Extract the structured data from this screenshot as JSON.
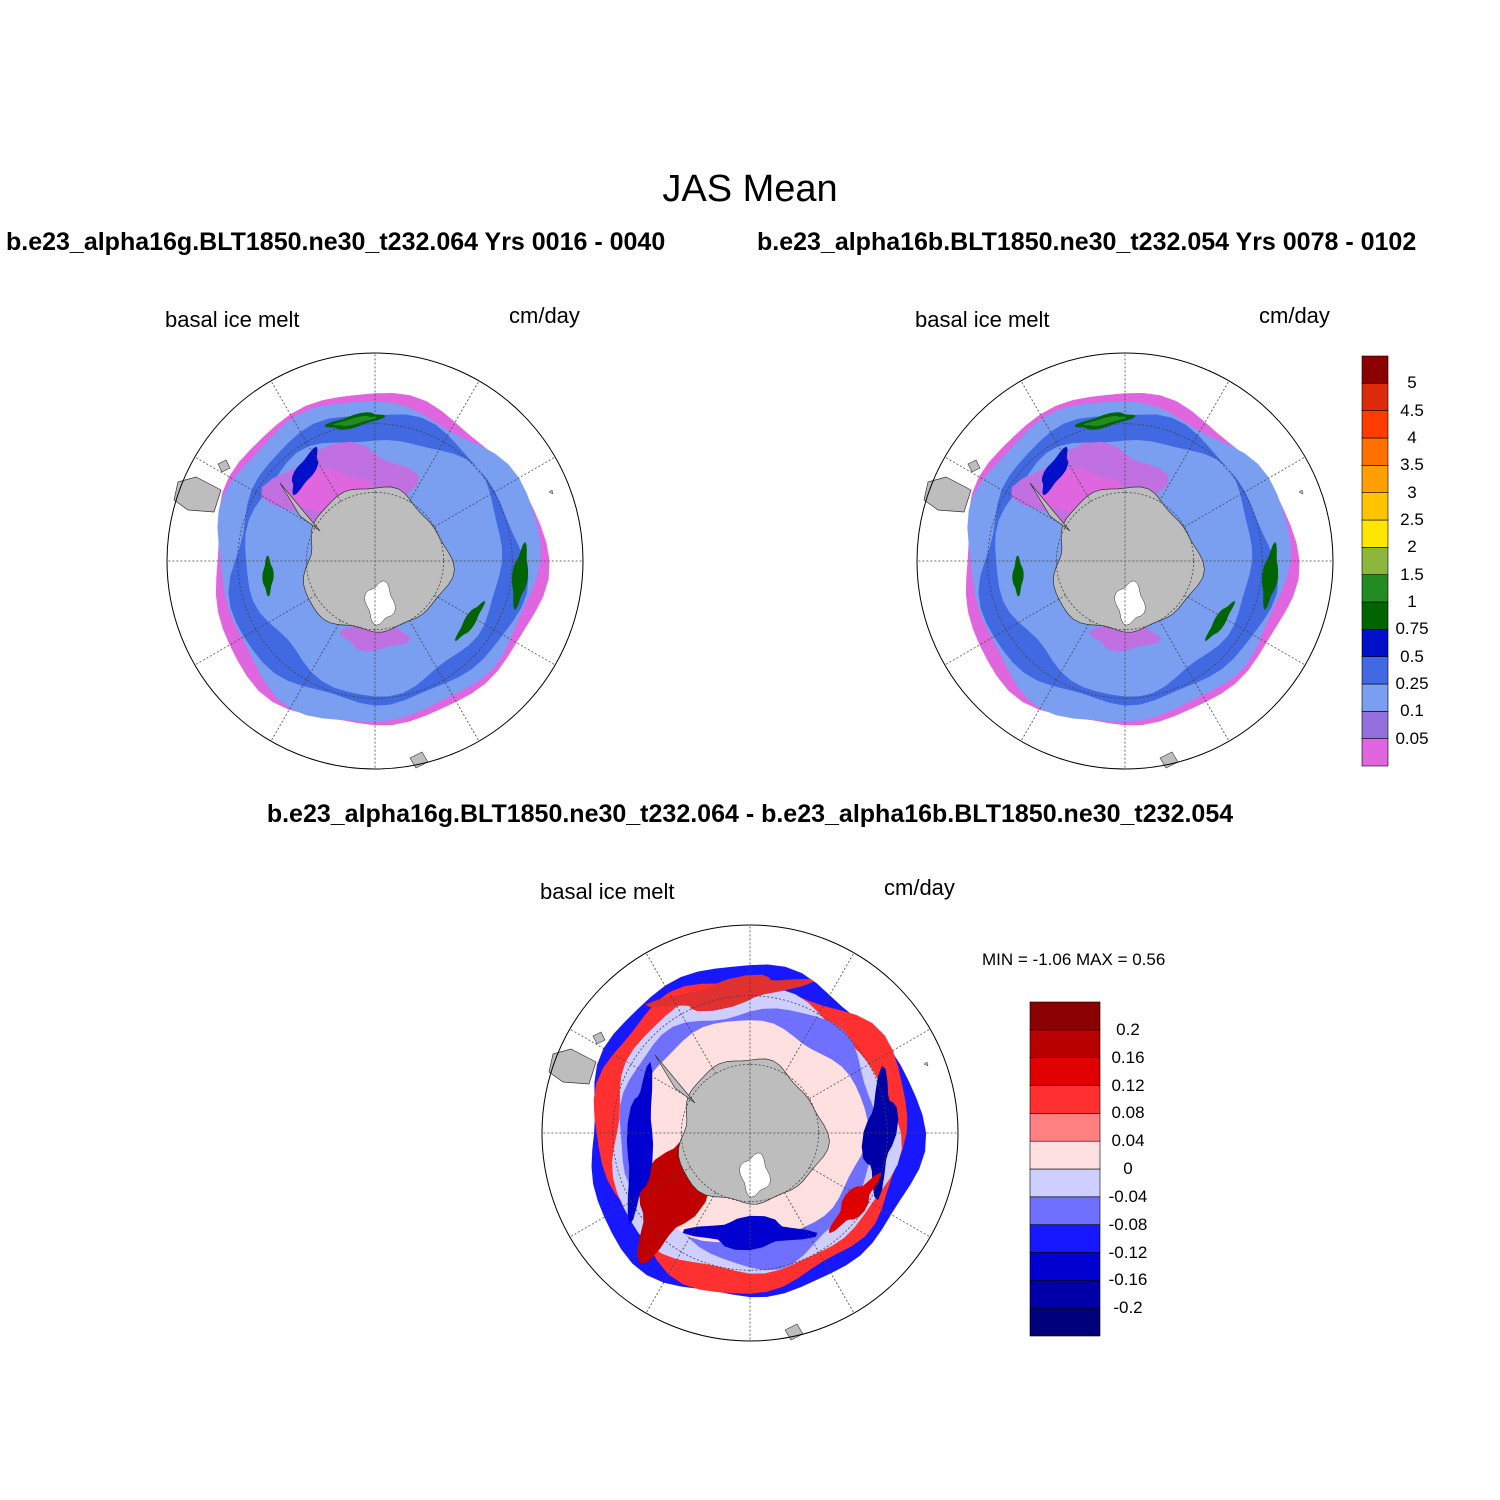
{
  "title": "JAS Mean",
  "case1": {
    "title": "b.e23_alpha16g.BLT1850.ne30_t232.064  Yrs 0016 - 0040"
  },
  "case2": {
    "title": "b.e23_alpha16b.BLT1850.ne30_t232.054  Yrs 0078 - 0102"
  },
  "diff": {
    "title": "b.e23_alpha16g.BLT1850.ne30_t232.064 - b.e23_alpha16b.BLT1850.ne30_t232.054"
  },
  "panels": {
    "left": {
      "variable": "basal ice melt",
      "units": "cm/day"
    },
    "right": {
      "variable": "basal ice melt",
      "units": "cm/day"
    },
    "diff": {
      "variable": "basal ice melt",
      "units": "cm/day",
      "minmax": "MIN =  -1.06 MAX =   0.56"
    }
  },
  "colorbar_main": {
    "levels": [
      "0.05",
      "0.1",
      "0.25",
      "0.5",
      "0.75",
      "1",
      "1.5",
      "2",
      "2.5",
      "3",
      "3.5",
      "4",
      "4.5",
      "5"
    ],
    "colors": [
      "#e066e0",
      "#9370db",
      "#7a9ef0",
      "#4169e1",
      "#0010c8",
      "#006400",
      "#228b22",
      "#8db63a",
      "#ffe600",
      "#ffc400",
      "#ffa000",
      "#ff7000",
      "#ff3c00",
      "#dc2a0a",
      "#8b0000"
    ]
  },
  "colorbar_diff": {
    "levels": [
      "-0.2",
      "-0.16",
      "-0.12",
      "-0.08",
      "-0.04",
      "0",
      "0.04",
      "0.08",
      "0.12",
      "0.16",
      "0.2"
    ],
    "colors": [
      "#00007a",
      "#0000a8",
      "#0000d0",
      "#1818ff",
      "#7070ff",
      "#cfcfff",
      "#ffe0e0",
      "#ff8080",
      "#ff3030",
      "#e00000",
      "#b80000",
      "#8b0000"
    ]
  }
}
